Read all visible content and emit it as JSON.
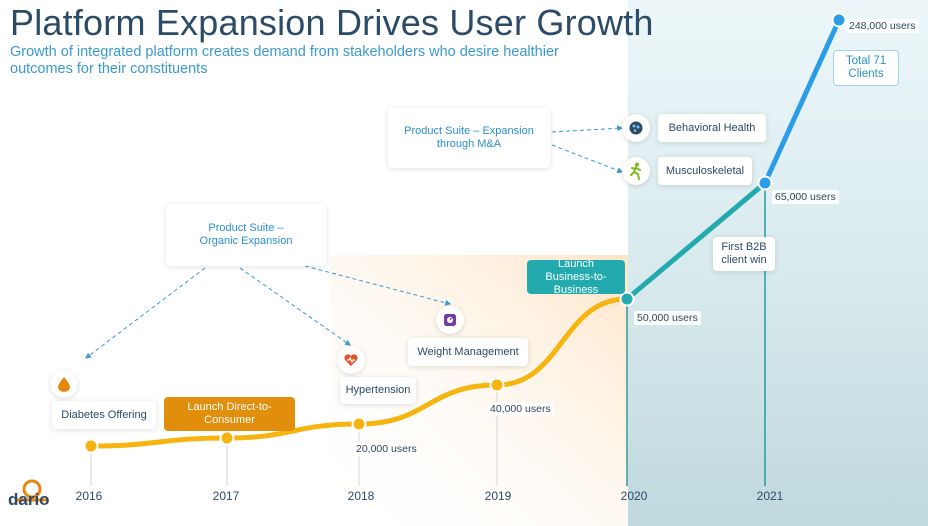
{
  "header": {
    "title": "Platform Expansion Drives User Growth",
    "subtitle": "Growth of integrated platform creates demand from stakeholders who desire healthier outcomes for their constituents"
  },
  "colors": {
    "orange": "#f5b40f",
    "teal": "#22aaae",
    "blue": "#2b9ce8",
    "navy": "#2c4b66"
  },
  "chart_data": {
    "type": "line",
    "x": [
      "2016",
      "2017",
      "2018",
      "2019",
      "2020",
      "2021"
    ],
    "series": [
      {
        "values": [
          {
            "x": "2016",
            "y": null
          },
          {
            "x": "2017",
            "y": null
          },
          {
            "x": "2018",
            "y": 20000
          },
          {
            "x": "2019",
            "y": 40000
          },
          {
            "x": "2020",
            "y": 50000
          },
          {
            "x": "2021",
            "y": 65000
          },
          {
            "x": "late 2021",
            "y": 248000
          }
        ]
      }
    ],
    "point_labels": [
      "20,000 users",
      "40,000 users",
      "50,000 users",
      "65,000 users",
      "248,000 users"
    ],
    "annotations": {
      "organic_title": "Product Suite – Organic Expansion",
      "mna_title": "Product Suite – Expansion through M&A",
      "diabetes": "Diabetes Offering",
      "hypertension": "Hypertension",
      "weight": "Weight Management",
      "behavioral": "Behavioral Health",
      "msk": "Musculoskeletal",
      "launch_dtc": "Launch Direct-to-Consumer",
      "launch_b2b": "Launch Business-to-Business",
      "first_b2b": "First B2B client win",
      "total_clients": "Total 71 Clients"
    },
    "segment_colors": {
      "2016-2020": "orange",
      "2020-2021": "teal",
      "2021-end": "blue"
    }
  },
  "brand": {
    "logo_text": "dario"
  },
  "icons": {
    "diabetes": "drop-icon",
    "hypertension": "heart-pulse-icon",
    "weight": "scale-icon",
    "behavioral": "brain-icon",
    "msk": "running-person-icon"
  }
}
